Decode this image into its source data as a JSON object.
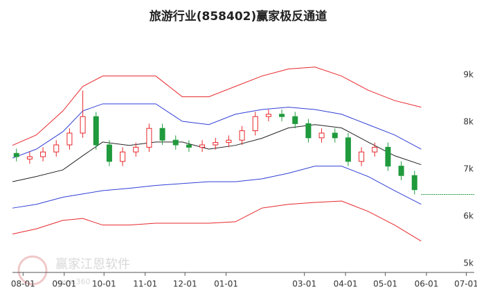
{
  "chart_data": {
    "type": "candlestick",
    "title": "旅游行业(858402)赢家极反通道",
    "watermark": "赢家江恩软件",
    "watermark_url": "www.360",
    "x": [
      -5,
      5,
      15,
      25,
      35,
      45,
      55,
      65,
      75,
      85,
      95,
      105,
      115,
      125,
      135,
      145,
      155,
      165,
      175,
      185,
      195,
      205,
      215,
      225,
      235,
      245,
      255,
      265,
      275,
      285,
      295
    ],
    "open": [
      7420,
      7300,
      7350,
      7450,
      7600,
      7850,
      8200,
      7600,
      7250,
      7450,
      7550,
      7950,
      7700,
      7600,
      7550,
      7600,
      7650,
      7700,
      7900,
      8200,
      8250,
      8200,
      8050,
      7750,
      7850,
      7750,
      7250,
      7450,
      7550,
      7150,
      6950
    ],
    "close": [
      7350,
      7350,
      7450,
      7600,
      7850,
      8200,
      7600,
      7250,
      7450,
      7550,
      7950,
      7700,
      7600,
      7550,
      7600,
      7650,
      7700,
      7900,
      8200,
      8250,
      8200,
      8050,
      7750,
      7850,
      7750,
      7250,
      7450,
      7550,
      7150,
      6950,
      6650
    ],
    "high": [
      7520,
      7450,
      7550,
      7700,
      7950,
      8750,
      8300,
      7700,
      7550,
      7650,
      8050,
      8050,
      7800,
      7700,
      7700,
      7750,
      7800,
      8000,
      8300,
      8350,
      8350,
      8300,
      8150,
      7950,
      7950,
      7850,
      7550,
      7650,
      7650,
      7250,
      7050
    ],
    "low": [
      7250,
      7200,
      7250,
      7350,
      7500,
      7750,
      7500,
      7150,
      7150,
      7350,
      7450,
      7600,
      7500,
      7450,
      7450,
      7500,
      7550,
      7600,
      7800,
      8100,
      8100,
      7950,
      7650,
      7650,
      7650,
      7150,
      7150,
      7350,
      7050,
      6850,
      6550
    ],
    "up_color": "#e8262a",
    "down_color": "#1f9a3c",
    "band_x": [
      -8,
      10,
      30,
      45,
      60,
      80,
      100,
      120,
      140,
      160,
      180,
      200,
      220,
      240,
      260,
      280,
      300
    ],
    "bands": [
      {
        "color": "#e8262a",
        "values": [
          7590,
          7810,
          8320,
          8840,
          9060,
          9060,
          9060,
          8620,
          8620,
          8840,
          9060,
          9210,
          9250,
          9060,
          8760,
          8540,
          8400
        ]
      },
      {
        "color": "#2f3fd6",
        "values": [
          7320,
          7510,
          7880,
          8320,
          8470,
          8470,
          8470,
          8100,
          8030,
          8250,
          8350,
          8400,
          8350,
          8250,
          8030,
          7810,
          7510
        ]
      },
      {
        "color": "#222222",
        "values": [
          6820,
          6930,
          7070,
          7370,
          7660,
          7590,
          7660,
          7660,
          7510,
          7590,
          7740,
          7960,
          8030,
          7960,
          7660,
          7370,
          7180
        ]
      },
      {
        "color": "#2f3fd6",
        "values": [
          6260,
          6340,
          6490,
          6560,
          6630,
          6680,
          6740,
          6780,
          6820,
          6820,
          6880,
          7000,
          7150,
          7150,
          6930,
          6630,
          6340
        ]
      },
      {
        "color": "#e8262a",
        "values": [
          5710,
          5820,
          6000,
          6040,
          5900,
          5900,
          5940,
          5940,
          5940,
          5970,
          6260,
          6340,
          6380,
          6410,
          6190,
          5900,
          5560
        ]
      }
    ],
    "reference_line": {
      "value": 6550,
      "x": [
        300,
        340
      ],
      "color": "#1f9a3c"
    },
    "xlim": [
      -8,
      340
    ],
    "xticks": [
      {
        "value": 0,
        "label": "08-01"
      },
      {
        "value": 31,
        "label": "09-01"
      },
      {
        "value": 61,
        "label": "10-01"
      },
      {
        "value": 92,
        "label": "11-01"
      },
      {
        "value": 122,
        "label": "12-01"
      },
      {
        "value": 153,
        "label": "01-01"
      },
      {
        "value": 212,
        "label": "03-01"
      },
      {
        "value": 243,
        "label": "04-01"
      },
      {
        "value": 273,
        "label": "05-01"
      },
      {
        "value": 304,
        "label": "06-01"
      },
      {
        "value": 334,
        "label": "07-01"
      }
    ],
    "ylim": [
      4940,
      9790
    ],
    "yticks": [
      {
        "value": 5000,
        "label": "5k"
      },
      {
        "value": 6000,
        "label": "6k"
      },
      {
        "value": 7000,
        "label": "7k"
      },
      {
        "value": 8000,
        "label": "8k"
      },
      {
        "value": 9000,
        "label": "9k"
      }
    ]
  }
}
